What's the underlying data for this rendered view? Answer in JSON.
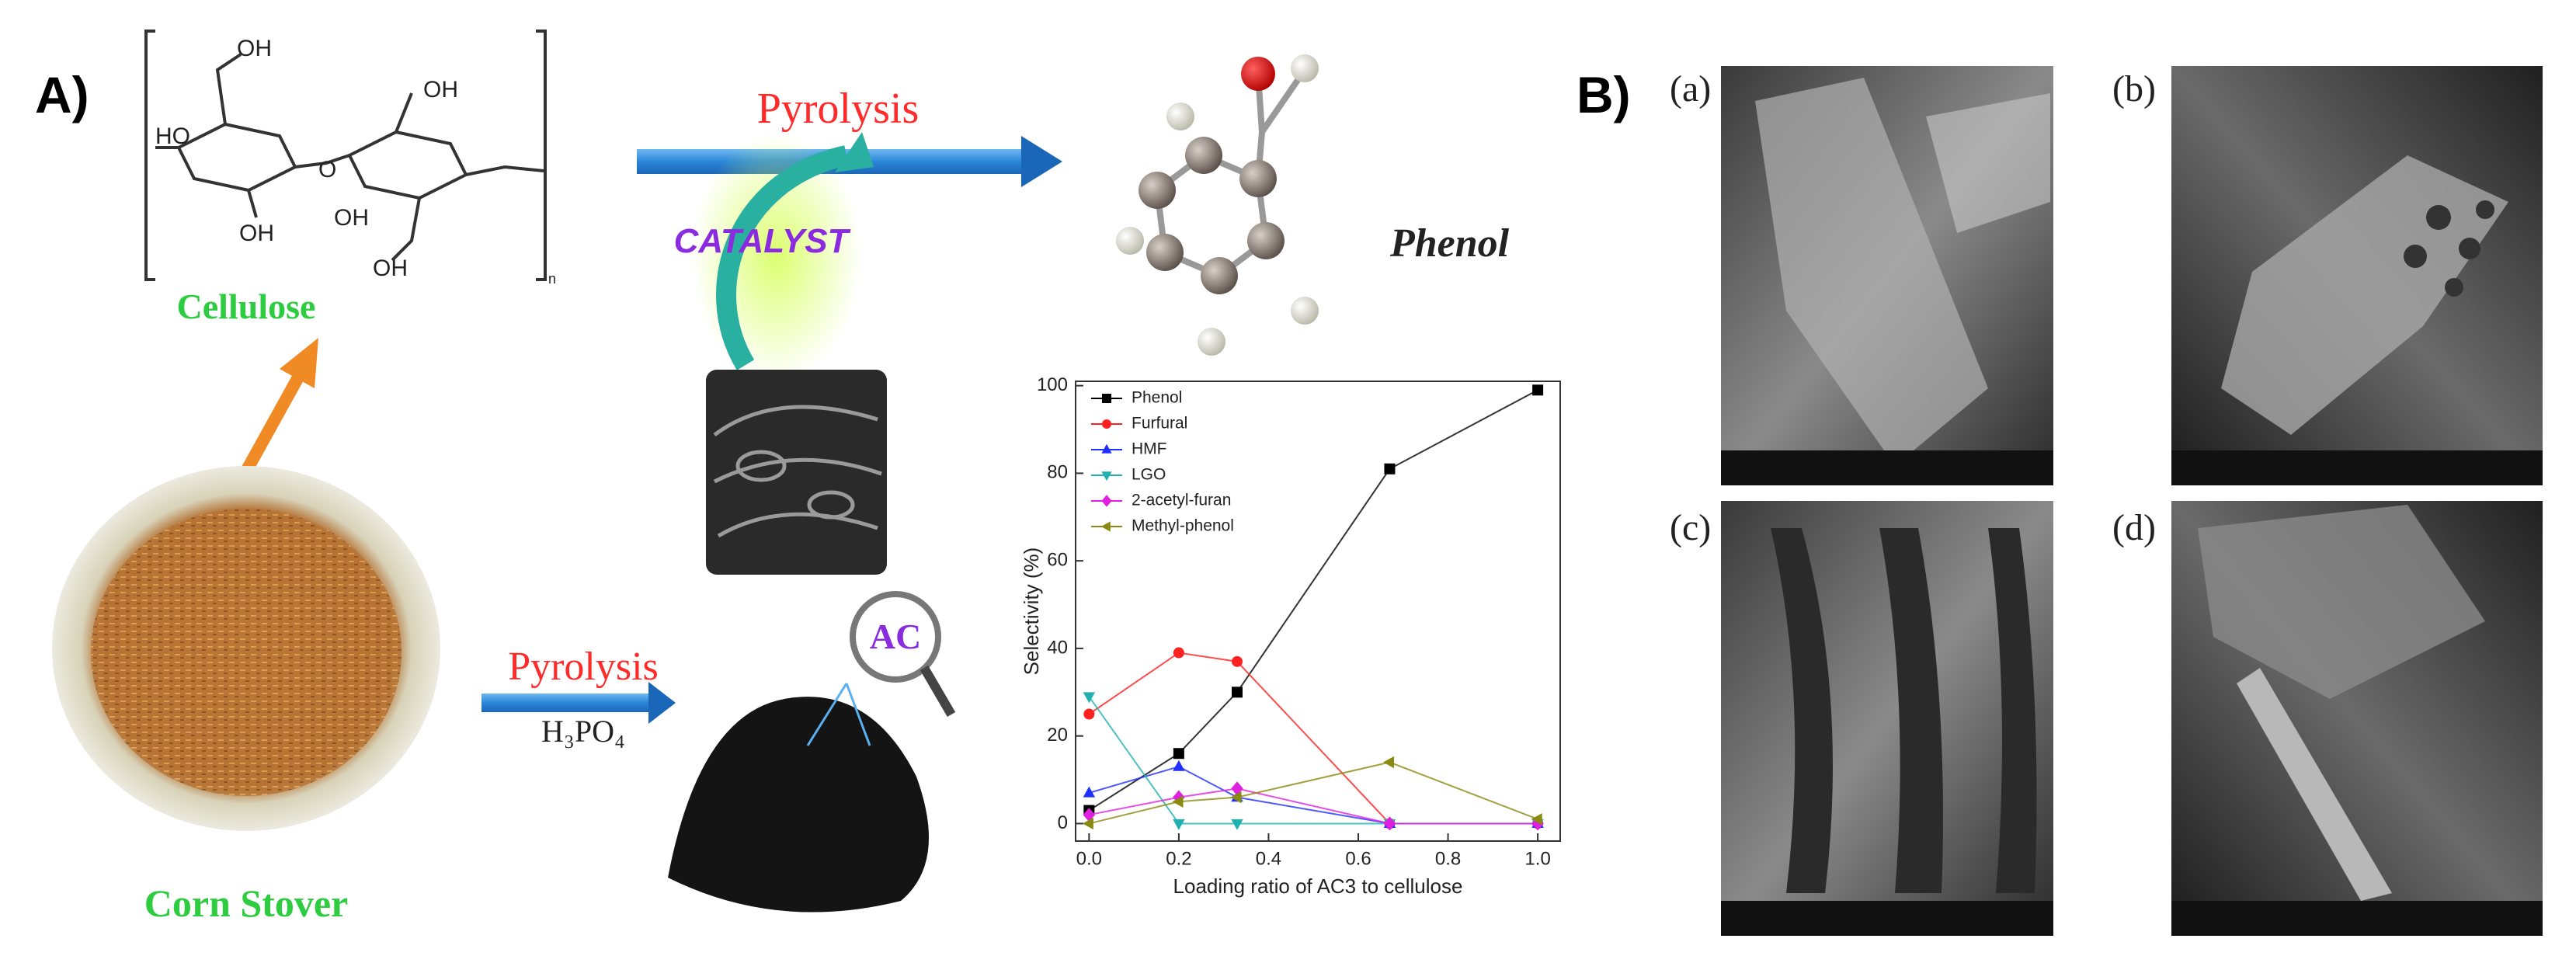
{
  "panel_a": {
    "label": "A)",
    "structure_labels": [
      "OH",
      "HO",
      "OH",
      "O",
      "OH",
      "OH",
      "OH",
      "n"
    ],
    "cellulose": "Cellulose",
    "corn_stover": "Corn Stover",
    "pyrolysis_top": "Pyrolysis",
    "catalyst": "CATALYST",
    "phenol": "Phenol",
    "pyrolysis_bottom": "Pyrolysis",
    "reagent": "H₃PO₄",
    "ac": "AC"
  },
  "panel_b": {
    "label": "B)",
    "images": [
      "(a)",
      "(b)",
      "(c)",
      "(d)"
    ]
  },
  "chart_data": {
    "type": "line",
    "x_label": "Loading ratio of AC3 to cellulose",
    "y_label": "Selectivity (%)",
    "x": [
      0,
      0.2,
      0.33,
      0.67,
      1.0
    ],
    "series": [
      {
        "name": "Phenol",
        "color": "#000000",
        "marker": "square",
        "values": [
          3,
          16,
          30,
          81,
          99
        ]
      },
      {
        "name": "Furfural",
        "color": "#ff2020",
        "marker": "circle",
        "values": [
          25,
          39,
          37,
          0,
          0
        ]
      },
      {
        "name": "HMF",
        "color": "#2030ff",
        "marker": "triangle",
        "values": [
          7,
          13,
          6,
          0,
          0
        ]
      },
      {
        "name": "LGO",
        "color": "#20b0b0",
        "marker": "triangle-down",
        "values": [
          29,
          0,
          0,
          0,
          0
        ]
      },
      {
        "name": "2-acetyl-furan",
        "color": "#e020e0",
        "marker": "diamond",
        "values": [
          2,
          6,
          8,
          0,
          0
        ]
      },
      {
        "name": "Methyl-phenol",
        "color": "#8a8a10",
        "marker": "triangle-left",
        "values": [
          0,
          5,
          6,
          14,
          1
        ]
      }
    ],
    "xlim": [
      -0.03,
      1.05
    ],
    "ylim": [
      -4,
      101
    ],
    "xticks": [
      {
        "value": 0,
        "label": "0.0"
      },
      {
        "value": 0.2,
        "label": "0.2"
      },
      {
        "value": 0.4,
        "label": "0.4"
      },
      {
        "value": 0.6,
        "label": "0.6"
      },
      {
        "value": 0.8,
        "label": "0.8"
      },
      {
        "value": 1.0,
        "label": "1.0"
      }
    ],
    "yticks": [
      0,
      20,
      40,
      60,
      80,
      100
    ],
    "legend": "top-left"
  }
}
